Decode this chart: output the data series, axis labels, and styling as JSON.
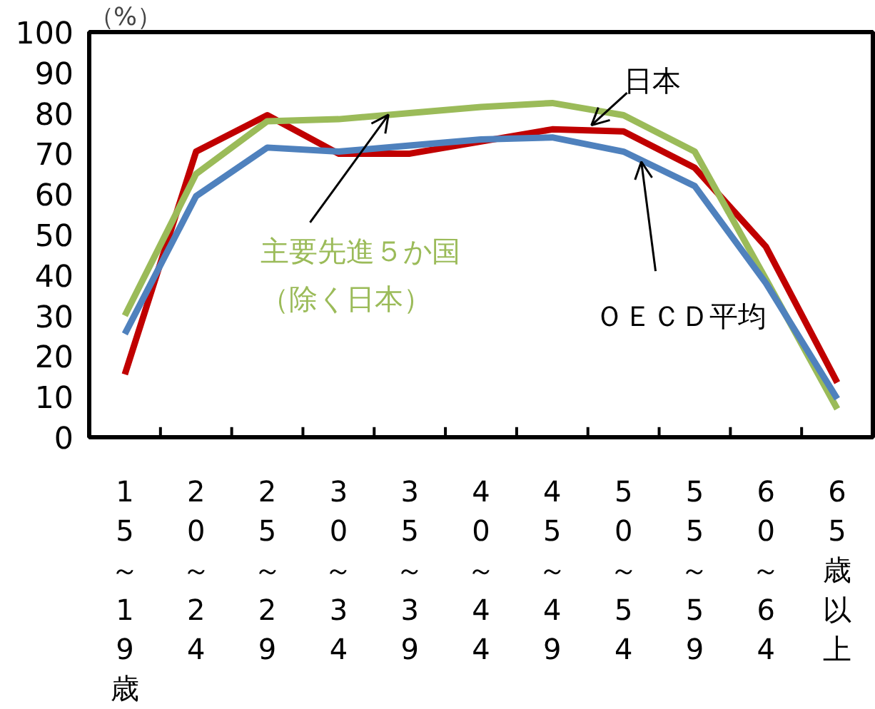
{
  "chart_data": {
    "type": "line",
    "ylabel": "（%）",
    "categories": [
      "15～19歳",
      "20～24",
      "25～29",
      "30～34",
      "35～39",
      "40～44",
      "45～49",
      "50～54",
      "55～59",
      "60～64",
      "65歳以上"
    ],
    "series": [
      {
        "name": "日本",
        "color": "#c00000",
        "values": [
          15.5,
          70.5,
          79.5,
          70,
          70,
          73,
          76,
          75.5,
          66.5,
          47,
          13.5
        ]
      },
      {
        "name": "主要先進５か国（除く日本）",
        "color": "#9bbb59",
        "values": [
          30,
          65,
          78,
          78.5,
          80,
          81.5,
          82.5,
          79.5,
          70.5,
          39,
          7
        ]
      },
      {
        "name": "ＯＥＣＤ平均",
        "color": "#4f81bd",
        "values": [
          25.5,
          59.5,
          71.5,
          70.5,
          72,
          73.5,
          74,
          70.5,
          62,
          38,
          9.5
        ]
      }
    ],
    "ylim": [
      0,
      100
    ],
    "yticks": [
      0,
      10,
      20,
      30,
      40,
      50,
      60,
      70,
      80,
      90,
      100
    ],
    "grid": false,
    "marker": "none",
    "line_style": "solid"
  }
}
